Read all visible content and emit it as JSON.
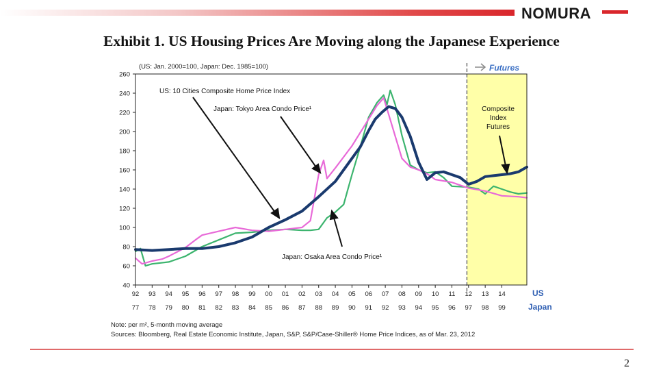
{
  "brand": {
    "name": "NOMURA"
  },
  "title": "Exhibit 1.  US Housing Prices Are Moving along the Japanese Experience",
  "page_number": "2",
  "colors": {
    "us": "#1a3a6e",
    "tokyo": "#e86ad8",
    "osaka": "#3cb46e",
    "futures_bg": "#ffffa8",
    "accent": "#3a6fc4",
    "brand_red": "#d9262b"
  },
  "chart_data": {
    "type": "line",
    "title": "",
    "unit_note": "(US: Jan. 2000=100, Japan: Dec. 1985=100)",
    "ylim": [
      40,
      260
    ],
    "yticks": [
      40,
      60,
      80,
      100,
      120,
      140,
      160,
      180,
      200,
      220,
      240,
      260
    ],
    "xlim": [
      1992,
      2015.5
    ],
    "xticks_us": [
      "92",
      "93",
      "94",
      "95",
      "96",
      "97",
      "98",
      "99",
      "00",
      "01",
      "02",
      "03",
      "04",
      "05",
      "06",
      "07",
      "08",
      "09",
      "10",
      "11",
      "12",
      "13",
      "14"
    ],
    "xticks_japan": [
      "77",
      "78",
      "79",
      "80",
      "81",
      "82",
      "83",
      "84",
      "85",
      "86",
      "87",
      "88",
      "89",
      "90",
      "91",
      "92",
      "93",
      "94",
      "95",
      "96",
      "97",
      "98",
      "99"
    ],
    "axis_label_us": "US",
    "axis_label_japan": "Japan",
    "futures_label": "Futures",
    "futures_start": 2011.9,
    "series": [
      {
        "name": "US: 10 Cities Composite Home Price Index",
        "key": "us",
        "x": [
          1992,
          1993,
          1994,
          1995,
          1996,
          1997,
          1998,
          1999,
          2000,
          2001,
          2002,
          2003,
          2004,
          2005,
          2005.5,
          2006,
          2006.4,
          2006.8,
          2007.2,
          2007.6,
          2008,
          2008.5,
          2009,
          2009.5,
          2010,
          2010.5,
          2011,
          2011.5,
          2012,
          2012.5,
          2013,
          2013.5,
          2014,
          2014.5,
          2015,
          2015.5
        ],
        "values": [
          77,
          76,
          77,
          78,
          78,
          80,
          84,
          90,
          100,
          108,
          117,
          132,
          148,
          172,
          184,
          201,
          213,
          220,
          226,
          224,
          215,
          195,
          168,
          150,
          157,
          158,
          155,
          152,
          145,
          148,
          153,
          154,
          155,
          156,
          158,
          163
        ]
      },
      {
        "name": "Japan: Tokyo Area Condo Price",
        "key": "tokyo",
        "x": [
          1992,
          1992.4,
          1993,
          1993.6,
          1994,
          1995,
          1995.6,
          1996,
          1997,
          1998,
          1999,
          2000,
          2001,
          2002,
          2002.5,
          2003,
          2003.3,
          2003.5,
          2004,
          2005,
          2006,
          2006.5,
          2006.9,
          2007.2,
          2007.6,
          2008,
          2008.5,
          2009,
          2009.5,
          2010,
          2011,
          2012,
          2013,
          2014,
          2015,
          2015.5
        ],
        "values": [
          68,
          62,
          65,
          67,
          70,
          79,
          87,
          92,
          96,
          100,
          97,
          96,
          98,
          100,
          107,
          155,
          170,
          151,
          162,
          185,
          213,
          227,
          235,
          218,
          195,
          172,
          163,
          160,
          156,
          150,
          147,
          141,
          138,
          133,
          132,
          131
        ]
      },
      {
        "name": "Japan: Osaka Area Condo Price",
        "key": "osaka",
        "x": [
          1992,
          1992.3,
          1992.6,
          1993,
          1994,
          1995,
          1996,
          1997,
          1998,
          1999,
          2000,
          2001,
          2002,
          2002.5,
          2003,
          2003.5,
          2004,
          2004.5,
          2005,
          2005.6,
          2006,
          2006.5,
          2006.9,
          2007.1,
          2007.3,
          2007.6,
          2008,
          2008.5,
          2009,
          2009.5,
          2010,
          2010.5,
          2011,
          2012,
          2012.6,
          2013,
          2013.5,
          2014,
          2014.5,
          2015,
          2015.5
        ],
        "values": [
          75,
          78,
          60,
          62,
          64,
          70,
          80,
          87,
          94,
          95,
          97,
          98,
          97,
          97,
          98,
          110,
          116,
          124,
          155,
          190,
          215,
          230,
          238,
          228,
          243,
          228,
          196,
          165,
          160,
          157,
          158,
          152,
          143,
          142,
          140,
          135,
          143,
          140,
          137,
          135,
          136
        ]
      }
    ],
    "annotations": [
      {
        "text": "US: 10 Cities Composite Home Price Index",
        "key": "us"
      },
      {
        "text": "Japan: Tokyo Area Condo Price¹",
        "key": "tokyo"
      },
      {
        "text": "Japan: Osaka Area Condo Price¹",
        "key": "osaka"
      },
      {
        "text": "Composite Index Futures",
        "key": "futures"
      }
    ]
  },
  "notes": {
    "note": "Note: per m², 5-month moving average",
    "sources": "Sources: Bloomberg, Real Estate Economic Institute, Japan, S&P, S&P/Case-Shiller® Home Price Indices, as of Mar. 23, 2012"
  }
}
